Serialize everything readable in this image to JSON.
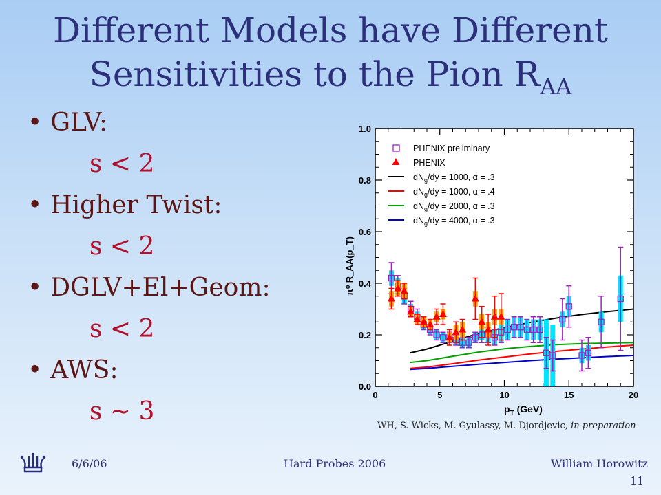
{
  "slide": {
    "title_line1": "Different Models have Different",
    "title_line2": "Sensitivities to the Pion R",
    "title_subscript": "AA",
    "bullets": [
      {
        "label": "GLV:",
        "value": "s < 2"
      },
      {
        "label": "Higher Twist:",
        "value": "s < 2"
      },
      {
        "label": "DGLV+El+Geom:",
        "value": "s < 2"
      },
      {
        "label": "AWS:",
        "value": "s ~ 3"
      }
    ],
    "caption_main": "WH, S. Wicks, M. Gyulassy, M. Djordjevic, ",
    "caption_italic": "in preparation",
    "footer": {
      "date": "6/6/06",
      "event": "Hard Probes 2006",
      "author": "William Horowitz",
      "page": "11"
    }
  },
  "chart_data": {
    "type": "scatter",
    "xlabel": "p",
    "xlabel_sub": "T",
    "xlabel_unit": " (GeV)",
    "ylabel": "π⁰ R_AA(p_T)",
    "xlim": [
      0,
      20
    ],
    "ylim": [
      0,
      1.0
    ],
    "x_ticks": [
      0,
      5,
      10,
      15,
      20
    ],
    "y_ticks": [
      0.0,
      0.2,
      0.4,
      0.6,
      0.8,
      1.0
    ],
    "y_tick_labels": [
      "0.0",
      "0.2",
      "0.4",
      "0.6",
      "0.8",
      "1.0"
    ],
    "legend_position": "top-right",
    "legend": [
      {
        "text": "PHENIX preliminary",
        "marker": "open-square",
        "color": "#a020c0"
      },
      {
        "text": "PHENIX",
        "marker": "filled-triangle",
        "color": "#ff0000"
      },
      {
        "text": "dN",
        "sub": "g",
        "rest": "/dy = 1000, α = .3",
        "marker": "line",
        "color": "#000000"
      },
      {
        "text": "dN",
        "sub": "g",
        "rest": "/dy = 1000, α = .4",
        "marker": "line",
        "color": "#ff0000"
      },
      {
        "text": "dN",
        "sub": "g",
        "rest": "/dy = 2000, α = .3",
        "marker": "line",
        "color": "#00a000"
      },
      {
        "text": "dN",
        "sub": "g",
        "rest": "/dy = 4000, α = .3",
        "marker": "line",
        "color": "#0000cc"
      }
    ],
    "series": [
      {
        "name": "PHENIX preliminary",
        "marker": "open-square",
        "color": "#a020c0",
        "syscolor": "#00e5ff",
        "x": [
          1.25,
          1.75,
          2.25,
          2.75,
          3.25,
          3.75,
          4.25,
          4.75,
          5.25,
          5.75,
          6.25,
          6.75,
          7.25,
          7.75,
          8.25,
          8.75,
          9.25,
          9.75,
          10.25,
          10.75,
          11.25,
          11.75,
          12.25,
          12.75,
          13.25,
          13.75,
          14.5,
          15.0,
          16.0,
          16.5,
          17.5,
          19.0
        ],
        "y": [
          0.42,
          0.39,
          0.35,
          0.3,
          0.27,
          0.24,
          0.22,
          0.2,
          0.19,
          0.19,
          0.18,
          0.17,
          0.17,
          0.19,
          0.2,
          0.2,
          0.19,
          0.21,
          0.22,
          0.23,
          0.23,
          0.22,
          0.22,
          0.22,
          0.13,
          0.12,
          0.26,
          0.31,
          0.12,
          0.13,
          0.25,
          0.34
        ],
        "err": [
          0.06,
          0.04,
          0.03,
          0.03,
          0.03,
          0.02,
          0.02,
          0.02,
          0.02,
          0.02,
          0.02,
          0.02,
          0.02,
          0.02,
          0.03,
          0.03,
          0.03,
          0.04,
          0.04,
          0.04,
          0.04,
          0.04,
          0.05,
          0.05,
          0.06,
          0.06,
          0.08,
          0.08,
          0.06,
          0.06,
          0.1,
          0.2
        ],
        "sys": [
          0.03,
          0.03,
          0.03,
          0.02,
          0.02,
          0.02,
          0.02,
          0.02,
          0.02,
          0.02,
          0.02,
          0.02,
          0.02,
          0.02,
          0.02,
          0.03,
          0.03,
          0.04,
          0.04,
          0.04,
          0.04,
          0.04,
          0.04,
          0.04,
          0.13,
          0.12,
          0.03,
          0.04,
          0.03,
          0.03,
          0.04,
          0.09
        ]
      },
      {
        "name": "PHENIX",
        "marker": "filled-triangle",
        "color": "#ff0000",
        "syscolor": "#ffa500",
        "x": [
          1.25,
          1.75,
          2.25,
          2.75,
          3.25,
          3.75,
          4.25,
          4.75,
          5.25,
          5.75,
          6.25,
          6.75,
          7.75,
          8.25,
          8.75,
          9.25,
          9.75
        ],
        "y": [
          0.34,
          0.38,
          0.37,
          0.29,
          0.26,
          0.25,
          0.24,
          0.27,
          0.28,
          0.19,
          0.21,
          0.22,
          0.34,
          0.25,
          0.22,
          0.27,
          0.27
        ],
        "err": [
          0.04,
          0.03,
          0.03,
          0.02,
          0.02,
          0.02,
          0.02,
          0.03,
          0.04,
          0.03,
          0.04,
          0.04,
          0.08,
          0.06,
          0.06,
          0.08,
          0.09
        ],
        "sys": [
          0.03,
          0.03,
          0.03,
          0.02,
          0.02,
          0.02,
          0.02,
          0.02,
          0.02,
          0.02,
          0.03,
          0.03,
          0.03,
          0.03,
          0.03,
          0.03,
          0.03
        ]
      },
      {
        "name": "dN_g/dy = 1000, α = .3",
        "marker": "line",
        "color": "#000000",
        "x": [
          2.7,
          4,
          6,
          8,
          10,
          12,
          14,
          16,
          18,
          20
        ],
        "y": [
          0.13,
          0.145,
          0.175,
          0.205,
          0.228,
          0.248,
          0.265,
          0.279,
          0.29,
          0.3
        ]
      },
      {
        "name": "dN_g/dy = 1000, α = .4",
        "marker": "line",
        "color": "#ff0000",
        "x": [
          2.7,
          4,
          6,
          8,
          10,
          12,
          14,
          16,
          18,
          20
        ],
        "y": [
          0.07,
          0.075,
          0.088,
          0.102,
          0.114,
          0.126,
          0.136,
          0.145,
          0.153,
          0.16
        ]
      },
      {
        "name": "dN_g/dy = 2000, α = .3",
        "marker": "line",
        "color": "#00a000",
        "x": [
          2.7,
          4,
          6,
          8,
          10,
          12,
          14,
          16,
          18,
          20
        ],
        "y": [
          0.093,
          0.1,
          0.117,
          0.133,
          0.146,
          0.155,
          0.162,
          0.166,
          0.168,
          0.17
        ]
      },
      {
        "name": "dN_g/dy = 4000, α = .3",
        "marker": "line",
        "color": "#0000cc",
        "x": [
          2.7,
          4,
          6,
          8,
          10,
          12,
          14,
          16,
          18,
          20
        ],
        "y": [
          0.066,
          0.07,
          0.078,
          0.086,
          0.093,
          0.1,
          0.106,
          0.111,
          0.116,
          0.12
        ]
      }
    ]
  }
}
